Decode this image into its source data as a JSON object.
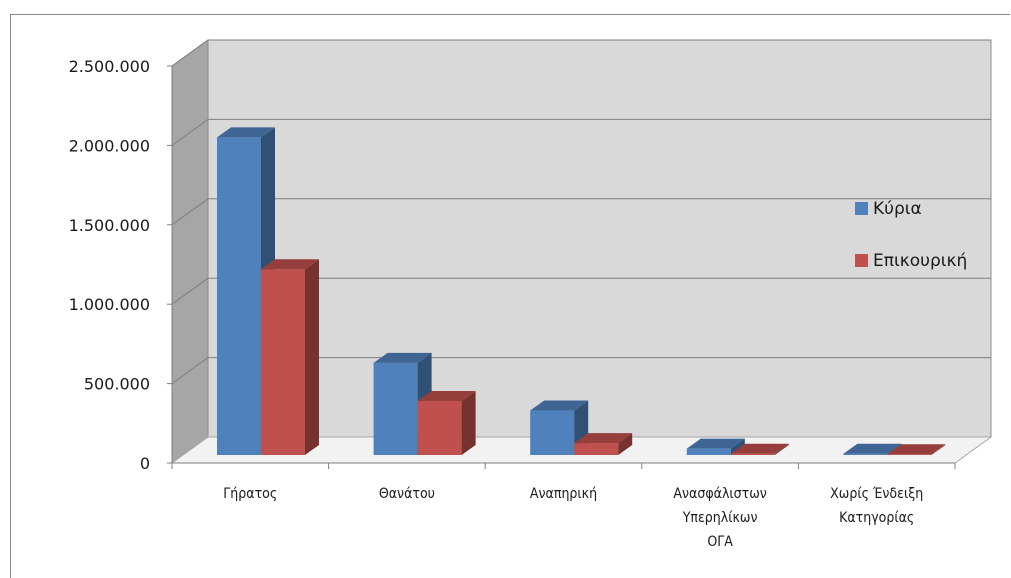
{
  "chart_data": {
    "type": "bar",
    "title": "",
    "xlabel": "",
    "ylabel": "",
    "ylim": [
      0,
      2500000
    ],
    "y_ticks": [
      0,
      500000,
      1000000,
      1500000,
      2000000,
      2500000
    ],
    "y_tick_labels": [
      "0",
      "500.000",
      "1.000.000",
      "1.500.000",
      "2.000.000",
      "2.500.000"
    ],
    "categories": [
      [
        "Γήρατος"
      ],
      [
        "Θανάτου"
      ],
      [
        "Αναπηρική"
      ],
      [
        "Ανασφάλιστων",
        "Υπερηλίκων",
        "ΟΓΑ"
      ],
      [
        "Χωρίς Ένδειξη",
        "Κατηγορίας"
      ]
    ],
    "series": [
      {
        "name": "Κύρια",
        "color": "#4f81bd",
        "values": [
          2000000,
          580000,
          280000,
          40000,
          8000
        ]
      },
      {
        "name": "Επικουρική",
        "color": "#c0504d",
        "values": [
          1170000,
          340000,
          75000,
          8000,
          5000
        ]
      }
    ],
    "grid": true,
    "legend_position": "right",
    "style": "3d-clustered-column"
  }
}
